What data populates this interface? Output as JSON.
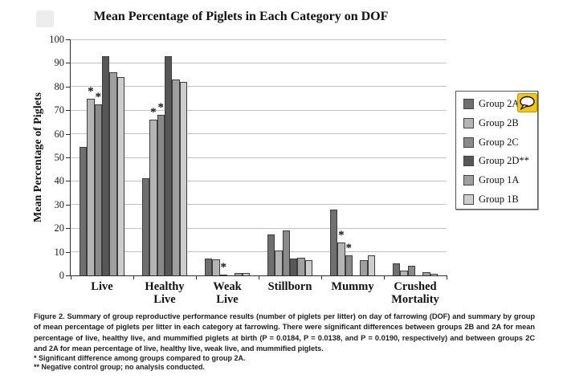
{
  "title": "Mean Percentage of Piglets in Each Category on DOF",
  "chart_data": {
    "type": "bar",
    "title": "Mean Percentage of Piglets in Each Category on DOF",
    "xlabel": "",
    "ylabel": "Mean Percentage of Piglets",
    "ylim": [
      0,
      100
    ],
    "yticks": [
      0,
      10,
      20,
      30,
      40,
      50,
      60,
      70,
      80,
      90,
      100
    ],
    "grid": "horizontal",
    "legend_position": "right",
    "categories": [
      "Live",
      "Healthy Live",
      "Weak Live",
      "Stillborn",
      "Mummy",
      "Crushed Mortality"
    ],
    "category_label_lines": [
      [
        "Live"
      ],
      [
        "Healthy",
        "Live"
      ],
      [
        "Weak",
        "Live"
      ],
      [
        "Stillborn"
      ],
      [
        "Mummy"
      ],
      [
        "Crushed",
        "Mortality"
      ]
    ],
    "series": [
      {
        "name": "Group 2A",
        "color": "#6f6f6f",
        "values": [
          54.5,
          41,
          7,
          17.5,
          28,
          5
        ],
        "starred": [
          false,
          false,
          false,
          false,
          false,
          false
        ]
      },
      {
        "name": "Group 2B",
        "color": "#b4b4b4",
        "values": [
          75,
          66,
          6.8,
          10.5,
          14,
          2
        ],
        "starred": [
          true,
          true,
          false,
          false,
          true,
          false
        ]
      },
      {
        "name": "Group 2C",
        "color": "#8a8a8a",
        "values": [
          72.5,
          68,
          0.4,
          19,
          8.5,
          4
        ],
        "starred": [
          true,
          true,
          true,
          false,
          true,
          false
        ]
      },
      {
        "name": "Group 2D**",
        "color": "#575757",
        "values": [
          93,
          93,
          0,
          7,
          0,
          0
        ],
        "starred": [
          false,
          false,
          false,
          false,
          false,
          false
        ]
      },
      {
        "name": "Group 1A",
        "color": "#9f9f9f",
        "values": [
          86,
          83,
          1,
          7.5,
          6.5,
          1.5
        ],
        "starred": [
          false,
          false,
          false,
          false,
          false,
          false
        ]
      },
      {
        "name": "Group 1B",
        "color": "#cdcdcd",
        "values": [
          84,
          82,
          1,
          6.5,
          8.5,
          0.8
        ],
        "starred": [
          false,
          false,
          false,
          false,
          false,
          false
        ]
      }
    ],
    "annotations": {
      "star_symbol": "*",
      "star_meaning": "Significant difference among groups compared to group 2A."
    }
  },
  "icons": {
    "comment_bubble": "speech-bubble-icon",
    "bubble_fill": "#f5c512",
    "bubble_border": "#b8960a"
  },
  "caption": {
    "text": "Figure 2. Summary of group reproductive performance results (number of piglets per litter) on day of farrowing (DOF) and summary by group of mean percentage of piglets per litter in each category at farrowing. There were significant differences between groups 2B and 2A for mean percentage of live, healthy live, and mummified piglets at birth (P = 0.0184, P = 0.0138, and P = 0.0190, respectively) and between groups 2C and 2A for mean percentage of live, healthy live, weak live, and mummified piglets.",
    "footnote1": "* Significant difference among groups compared to group 2A.",
    "footnote2": "** Negative control group; no analysis conducted."
  }
}
